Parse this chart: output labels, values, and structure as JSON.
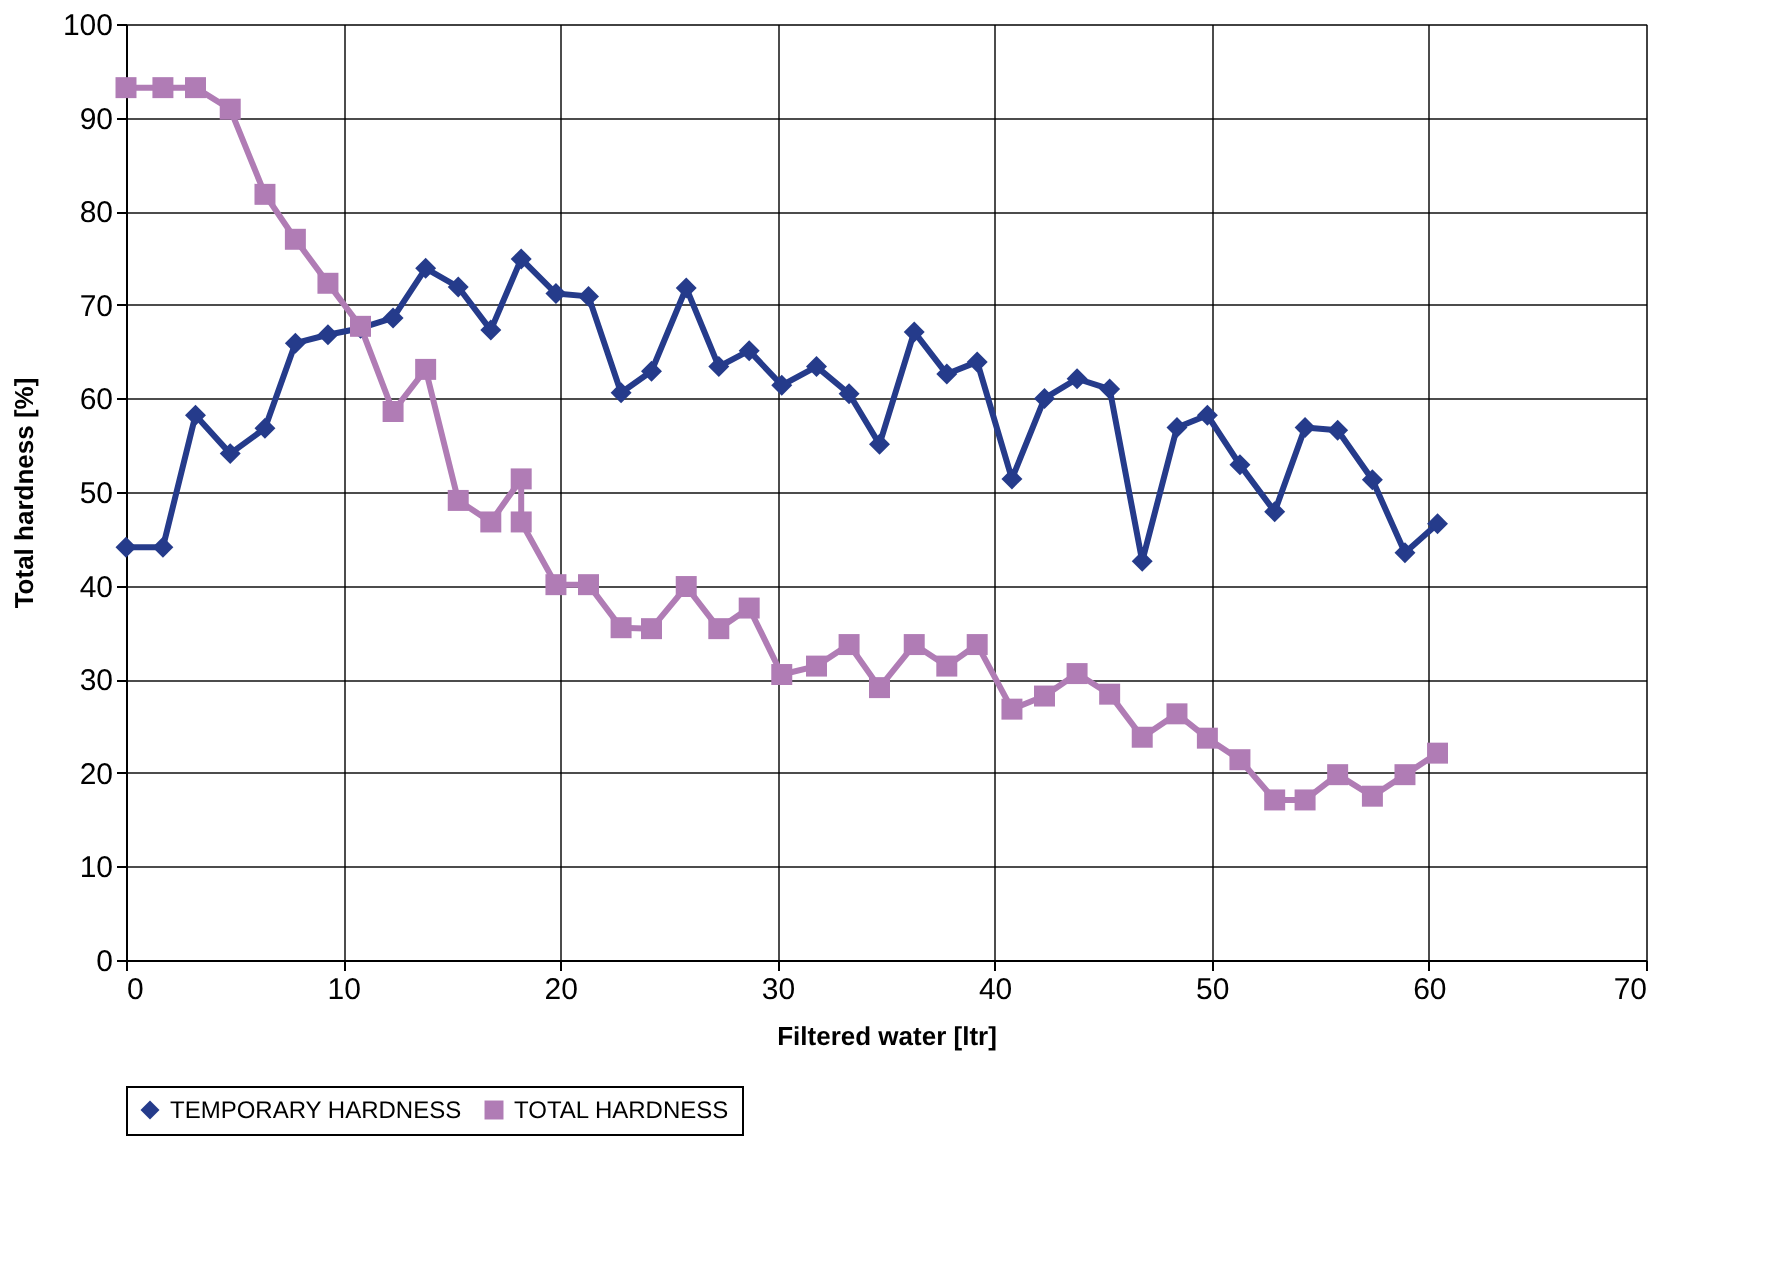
{
  "chart_data": {
    "type": "line",
    "xlabel": "Filtered water [ltr]",
    "ylabel": "Total hardness [%]",
    "xlim": [
      0,
      70
    ],
    "xticks": [
      0,
      10,
      20,
      30,
      40,
      50,
      60,
      70
    ],
    "ylim": [
      0,
      100
    ],
    "yticks": [
      0,
      10,
      20,
      30,
      40,
      50,
      60,
      70,
      80,
      90,
      100
    ],
    "grid": true,
    "legend": "bottom",
    "line_style": "solid",
    "series": [
      {
        "name": "TEMPORARY HARDNESS",
        "color": "#253b8b",
        "marker": "diamond",
        "x": [
          0,
          1.7,
          3.2,
          4.8,
          6.4,
          7.8,
          9.3,
          10.8,
          12.3,
          13.8,
          15.3,
          16.8,
          18.2,
          19.8,
          21.3,
          22.8,
          24.2,
          25.8,
          27.3,
          28.7,
          30.2,
          31.8,
          33.3,
          34.7,
          36.3,
          37.8,
          39.2,
          40.8,
          42.3,
          43.8,
          45.3,
          46.8,
          48.4,
          49.8,
          51.3,
          52.9,
          54.3,
          55.8,
          57.4,
          58.9,
          60.4
        ],
        "values": [
          44.1,
          44.1,
          58.2,
          54.1,
          56.8,
          65.9,
          66.8,
          67.5,
          68.6,
          73.9,
          71.9,
          67.3,
          74.9,
          71.2,
          70.9,
          60.6,
          62.9,
          71.8,
          63.4,
          65.1,
          61.4,
          63.4,
          60.5,
          55.1,
          67.1,
          62.6,
          63.9,
          51.4,
          60,
          62.1,
          61,
          42.6,
          56.9,
          58.2,
          52.9,
          47.9,
          56.9,
          56.6,
          51.3,
          43.5,
          46.6
        ]
      },
      {
        "name": "TOTAL HARDNESS",
        "color": "#b07cb5",
        "marker": "square",
        "x": [
          0,
          1.7,
          3.2,
          4.8,
          6.4,
          7.8,
          9.3,
          10.8,
          12.3,
          13.8,
          15.3,
          16.8,
          18.2,
          18.2,
          19.8,
          21.3,
          22.8,
          24.2,
          25.8,
          27.3,
          28.7,
          30.2,
          31.8,
          33.3,
          34.7,
          36.3,
          37.8,
          39.2,
          40.8,
          42.3,
          43.8,
          45.3,
          46.8,
          48.4,
          49.8,
          51.3,
          52.9,
          54.3,
          55.8,
          57.4,
          58.9,
          60.4
        ],
        "values": [
          93.2,
          93.2,
          93.2,
          90.9,
          81.8,
          77,
          72.3,
          67.7,
          58.6,
          63.1,
          49.1,
          46.8,
          51.4,
          46.8,
          40.1,
          40.1,
          35.5,
          35.4,
          39.9,
          35.4,
          37.6,
          30.5,
          31.4,
          33.7,
          29.1,
          33.7,
          31.4,
          33.7,
          26.8,
          28.2,
          30.6,
          28.4,
          23.8,
          26.3,
          23.7,
          21.4,
          17.1,
          17.1,
          19.8,
          17.5,
          19.8,
          22.1
        ]
      }
    ]
  }
}
